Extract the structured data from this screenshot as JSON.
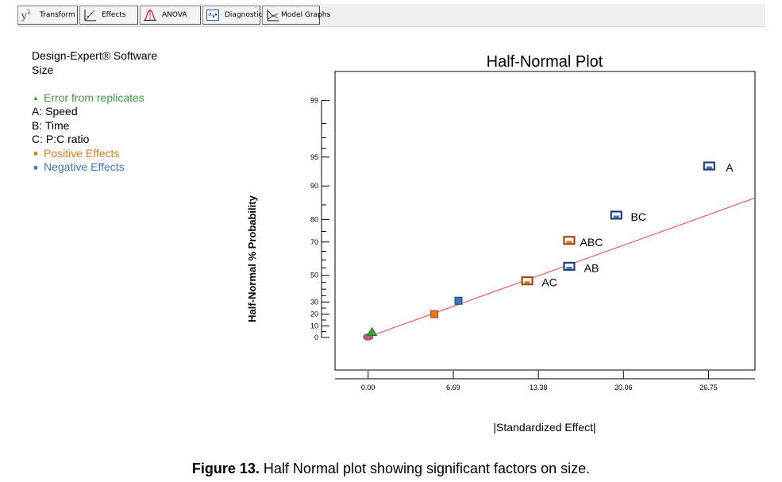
{
  "toolbar": {
    "buttons": [
      {
        "label": "Transform",
        "icon": "transform-icon"
      },
      {
        "label": "Effects",
        "icon": "effects-icon"
      },
      {
        "label": "ANOVA",
        "icon": "anova-icon"
      },
      {
        "label": "Diagnostics",
        "icon": "diagnostics-icon"
      },
      {
        "label": "Model Graphs",
        "icon": "model-graphs-icon"
      }
    ]
  },
  "sidebar": {
    "software": "Design-Expert® Software",
    "response": "Size",
    "legend": [
      {
        "marker": "▲",
        "text": "Error from replicates",
        "color": "#3aa13a"
      },
      {
        "marker": "",
        "text": "A: Speed",
        "color": "#000000"
      },
      {
        "marker": "",
        "text": "B: Time",
        "color": "#000000"
      },
      {
        "marker": "",
        "text": "C: P:C ratio",
        "color": "#000000"
      },
      {
        "marker": "■",
        "text": "Positive Effects",
        "color": "#e07820"
      },
      {
        "marker": "■",
        "text": "Negative Effects",
        "color": "#3a78c0"
      }
    ]
  },
  "caption": {
    "label": "Figure 13.",
    "text": " Half Normal plot showing significant factors on size."
  },
  "chart_data": {
    "type": "scatter",
    "title": "Half-Normal Plot",
    "xlabel": "|Standardized Effect|",
    "ylabel": "Half-Normal % Probability",
    "xlim": [
      -2.6,
      30.4
    ],
    "x_ticks": [
      0.0,
      6.69,
      13.38,
      20.06,
      26.75
    ],
    "x_tick_labels": [
      "0.00",
      "6.69",
      "13.38",
      "20.06",
      "26.75"
    ],
    "y_scale": "half-normal-probability",
    "y_ticks": [
      0,
      10,
      20,
      30,
      50,
      70,
      80,
      90,
      95,
      99
    ],
    "y_tick_labels": [
      "0",
      "10",
      "20",
      "30",
      "50",
      "70",
      "80",
      "90",
      "95",
      "99"
    ],
    "y_minor_ticks": [
      40,
      60
    ],
    "fit_line": {
      "x": [
        0.0,
        30.4
      ],
      "y": [
        0.5,
        87
      ]
    },
    "series": [
      {
        "name": "Positive Effects",
        "color": "#e07820",
        "points": [
          {
            "x": 5.2,
            "y": 20,
            "label": ""
          },
          {
            "x": 12.5,
            "y": 45,
            "label": "AC"
          },
          {
            "x": 15.8,
            "y": 70,
            "label": "ABC"
          }
        ]
      },
      {
        "name": "Negative Effects",
        "color": "#3a78c0",
        "points": [
          {
            "x": 7.1,
            "y": 31,
            "label": ""
          },
          {
            "x": 15.8,
            "y": 55,
            "label": "AB"
          },
          {
            "x": 19.5,
            "y": 81,
            "label": "BC"
          },
          {
            "x": 26.8,
            "y": 93.5,
            "label": "A"
          }
        ]
      },
      {
        "name": "Error from replicates",
        "color": "#3aa13a",
        "points": [
          {
            "x": 0.3,
            "y": 4.5,
            "label": ""
          }
        ]
      }
    ]
  }
}
